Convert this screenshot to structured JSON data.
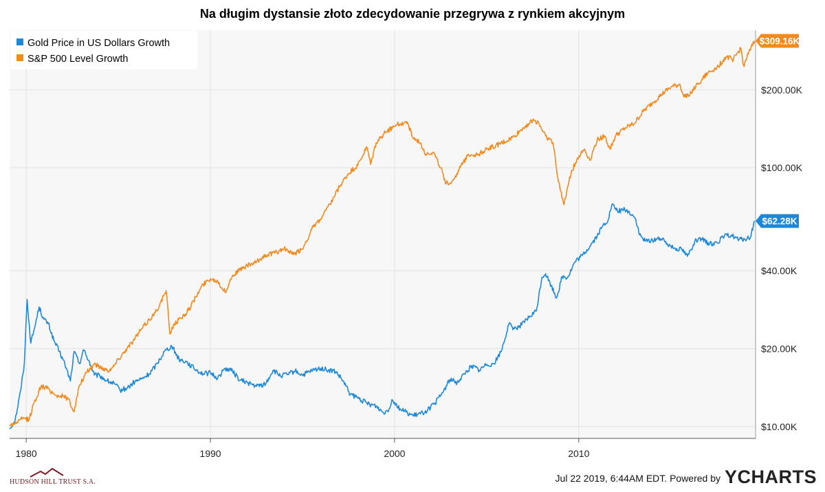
{
  "chart_data": {
    "type": "line",
    "title": "Na długim dystansie złoto zdecydowanie przegrywa z rynkiem akcyjnym",
    "x_axis": {
      "ticks": [
        "1980",
        "1990",
        "2000",
        "2010"
      ],
      "range": [
        1979.1,
        2019.6
      ]
    },
    "y_axis": {
      "scale": "log",
      "range": [
        9000,
        340000
      ],
      "ticks": [
        {
          "value": 10000,
          "label": "$10.00K"
        },
        {
          "value": 20000,
          "label": "$20.00K"
        },
        {
          "value": 40000,
          "label": "$40.00K"
        },
        {
          "value": 100000,
          "label": "$100.00K"
        },
        {
          "value": 200000,
          "label": "$200.00K"
        }
      ]
    },
    "grid": true,
    "legend_position": "top-left",
    "series": [
      {
        "name": "Gold Price in US Dollars Growth",
        "color": "#1e88d8",
        "end_label": "$62.28K",
        "x": [
          1979.1,
          1979.4,
          1979.7,
          1979.9,
          1980.05,
          1980.25,
          1980.45,
          1980.7,
          1980.95,
          1981.2,
          1981.5,
          1981.8,
          1982.1,
          1982.4,
          1982.6,
          1982.9,
          1983.1,
          1983.4,
          1983.7,
          1984.0,
          1984.4,
          1984.8,
          1985.1,
          1985.5,
          1985.9,
          1986.3,
          1986.7,
          1987.1,
          1987.5,
          1987.9,
          1988.3,
          1988.7,
          1989.1,
          1989.6,
          1990.0,
          1990.4,
          1990.8,
          1991.2,
          1991.6,
          1992.0,
          1992.5,
          1993.0,
          1993.4,
          1993.8,
          1994.2,
          1994.6,
          1995.0,
          1995.5,
          1996.0,
          1996.4,
          1996.8,
          1997.2,
          1997.6,
          1998.0,
          1998.5,
          1999.0,
          1999.4,
          1999.7,
          1999.85,
          2000.0,
          2000.3,
          2000.7,
          2001.0,
          2001.4,
          2001.8,
          2002.2,
          2002.6,
          2003.0,
          2003.4,
          2003.8,
          2004.2,
          2004.6,
          2005.0,
          2005.4,
          2005.8,
          2006.2,
          2006.5,
          2006.9,
          2007.3,
          2007.7,
          2008.0,
          2008.2,
          2008.5,
          2008.8,
          2009.1,
          2009.4,
          2009.8,
          2010.2,
          2010.6,
          2011.0,
          2011.3,
          2011.6,
          2011.8,
          2012.1,
          2012.5,
          2012.9,
          2013.1,
          2013.3,
          2013.6,
          2014.0,
          2014.4,
          2014.8,
          2015.2,
          2015.6,
          2015.9,
          2016.3,
          2016.7,
          2017.1,
          2017.5,
          2017.9,
          2018.3,
          2018.7,
          2019.0,
          2019.3,
          2019.55
        ],
        "y": [
          9800,
          10600,
          13800,
          17600,
          31000,
          21000,
          24000,
          29000,
          26000,
          25000,
          21500,
          19500,
          17400,
          15000,
          19500,
          17500,
          19800,
          18000,
          15800,
          15700,
          15000,
          14600,
          13800,
          14100,
          14900,
          15300,
          16000,
          17500,
          19500,
          20500,
          18200,
          17800,
          16800,
          16000,
          16100,
          15400,
          16800,
          16400,
          15100,
          14800,
          14300,
          14600,
          16500,
          15700,
          15900,
          16400,
          15800,
          16400,
          16800,
          16500,
          16300,
          15000,
          13300,
          12900,
          12300,
          12000,
          11300,
          11700,
          12700,
          12400,
          11700,
          11300,
          11000,
          11200,
          11600,
          12300,
          13500,
          15200,
          14800,
          16000,
          17200,
          16500,
          17400,
          17500,
          19600,
          24800,
          23900,
          24700,
          26400,
          28000,
          37700,
          39000,
          35000,
          31500,
          38000,
          37700,
          43300,
          45800,
          49700,
          54500,
          59500,
          63000,
          72000,
          68000,
          69000,
          66000,
          63000,
          55000,
          52000,
          52500,
          53500,
          51000,
          49000,
          48500,
          45500,
          52000,
          52800,
          50700,
          51500,
          54300,
          55000,
          52700,
          53000,
          53500,
          62280
        ]
      },
      {
        "name": "S&P 500 Level Growth",
        "color": "#f28a1e",
        "end_label": "$309.16K",
        "x": [
          1979.1,
          1979.5,
          1979.9,
          1980.15,
          1980.4,
          1980.8,
          1981.2,
          1981.6,
          1982.0,
          1982.3,
          1982.6,
          1982.9,
          1983.3,
          1983.7,
          1984.0,
          1984.4,
          1984.7,
          1985.0,
          1985.4,
          1985.8,
          1986.2,
          1986.6,
          1987.0,
          1987.3,
          1987.6,
          1987.8,
          1988.0,
          1988.4,
          1988.8,
          1989.2,
          1989.6,
          1990.0,
          1990.4,
          1990.8,
          1991.2,
          1991.6,
          1992.0,
          1992.5,
          1993.0,
          1993.5,
          1994.0,
          1994.5,
          1995.0,
          1995.5,
          1996.0,
          1996.5,
          1997.0,
          1997.5,
          1998.0,
          1998.5,
          1998.7,
          1999.0,
          1999.5,
          2000.0,
          2000.3,
          2000.7,
          2001.0,
          2001.4,
          2001.7,
          2002.1,
          2002.5,
          2002.8,
          2003.1,
          2003.5,
          2004.0,
          2004.5,
          2005.0,
          2005.5,
          2006.0,
          2006.5,
          2007.0,
          2007.5,
          2007.8,
          2008.2,
          2008.6,
          2008.9,
          2009.2,
          2009.5,
          2009.9,
          2010.3,
          2010.6,
          2011.0,
          2011.4,
          2011.7,
          2012.0,
          2012.5,
          2013.0,
          2013.5,
          2014.0,
          2014.5,
          2015.0,
          2015.5,
          2015.7,
          2016.1,
          2016.5,
          2017.0,
          2017.5,
          2018.0,
          2018.4,
          2018.8,
          2018.95,
          2019.2,
          2019.55
        ],
        "y": [
          10100,
          10400,
          10800,
          10600,
          12200,
          14300,
          14000,
          13200,
          13100,
          12800,
          11400,
          14500,
          16200,
          17500,
          17000,
          16500,
          16900,
          18200,
          19800,
          21400,
          23500,
          25500,
          27500,
          30200,
          33500,
          22800,
          24800,
          26200,
          28100,
          31600,
          35400,
          37300,
          36500,
          33000,
          38400,
          40300,
          41800,
          43100,
          46100,
          46800,
          48800,
          46200,
          48500,
          57800,
          63500,
          72100,
          84200,
          95000,
          102000,
          120000,
          103000,
          125000,
          137000,
          145000,
          148000,
          150000,
          130000,
          125000,
          113000,
          115000,
          100000,
          87000,
          88000,
          98000,
          113000,
          112000,
          118000,
          122000,
          126000,
          132000,
          143000,
          152000,
          150000,
          133000,
          125000,
          88000,
          72000,
          92000,
          108000,
          118000,
          107000,
          128000,
          133000,
          118000,
          133000,
          142000,
          148000,
          165000,
          178000,
          192000,
          205000,
          210000,
          188000,
          195000,
          212000,
          232000,
          244000,
          268000,
          262000,
          290000,
          248000,
          275000,
          309160
        ]
      }
    ]
  },
  "footer": {
    "brand": "HUDSON HILL TRUST S.A.",
    "timestamp": "Jul 22 2019, 6:44AM EDT.  Powered by",
    "ycharts": "YCHARTS"
  }
}
